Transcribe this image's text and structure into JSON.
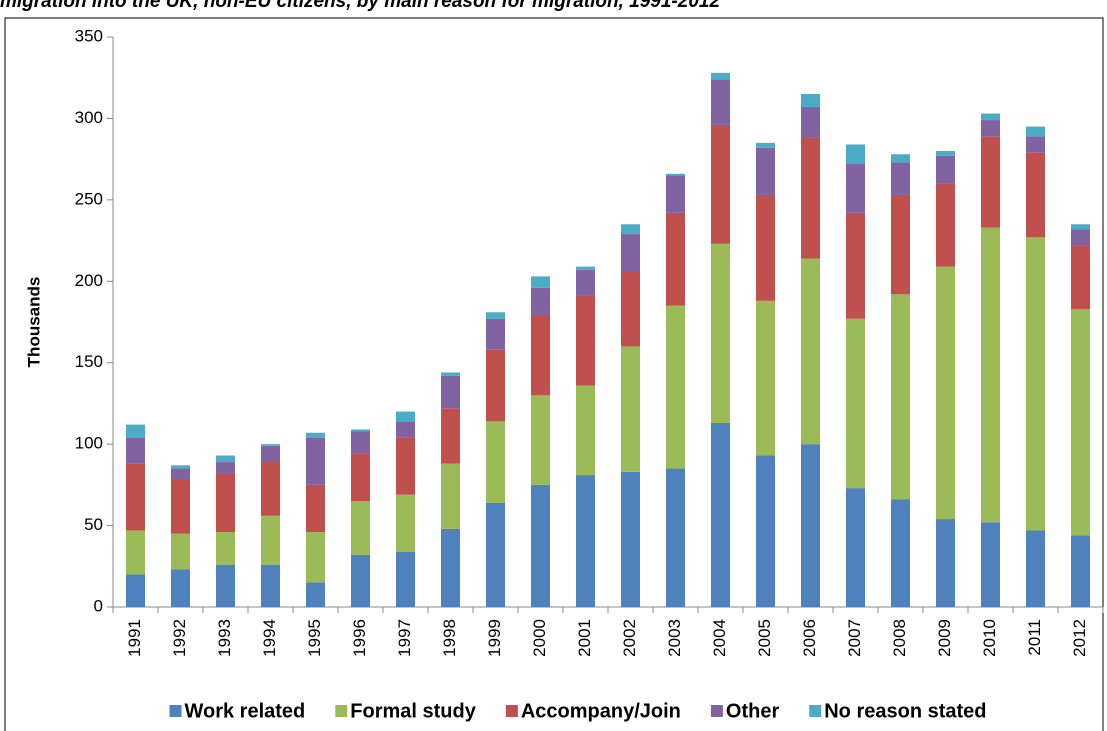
{
  "chart_data": {
    "type": "stacked_bar",
    "title": "migration into the UK, non-EU citizens, by main reason for migration, 1991-2012",
    "y_label": "Thousands",
    "categories": [
      "1991",
      "1992",
      "1993",
      "1994",
      "1995",
      "1996",
      "1997",
      "1998",
      "1999",
      "2000",
      "2001",
      "2002",
      "2003",
      "2004",
      "2005",
      "2006",
      "2007",
      "2008",
      "2009",
      "2010",
      "2011",
      "2012"
    ],
    "series": [
      {
        "name": "Work related",
        "color": "#4f81bd",
        "values": [
          20,
          23,
          26,
          26,
          15,
          32,
          34,
          48,
          64,
          75,
          81,
          83,
          85,
          113,
          93,
          100,
          73,
          66,
          54,
          52,
          47,
          44
        ]
      },
      {
        "name": "Formal study",
        "color": "#9bbb59",
        "values": [
          27,
          22,
          20,
          30,
          31,
          33,
          35,
          40,
          50,
          55,
          55,
          77,
          100,
          110,
          95,
          114,
          104,
          126,
          155,
          181,
          180,
          139
        ]
      },
      {
        "name": "Accompany/Join",
        "color": "#c0504d",
        "values": [
          41,
          33,
          36,
          33,
          29,
          29,
          35,
          34,
          44,
          49,
          55,
          46,
          57,
          73,
          65,
          74,
          65,
          61,
          51,
          56,
          52,
          39
        ]
      },
      {
        "name": "Other",
        "color": "#8064a2",
        "values": [
          16,
          7,
          7,
          10,
          29,
          14,
          10,
          20,
          19,
          17,
          16,
          23,
          23,
          28,
          29,
          19,
          30,
          20,
          17,
          10,
          10,
          10
        ]
      },
      {
        "name": "No reason stated",
        "color": "#4bacc6",
        "values": [
          8,
          2,
          4,
          1,
          3,
          1,
          6,
          2,
          4,
          7,
          2,
          6,
          1,
          4,
          3,
          8,
          12,
          5,
          3,
          4,
          6,
          3
        ]
      }
    ],
    "ylim": [
      0,
      350
    ],
    "yticks": [
      0,
      50,
      100,
      150,
      200,
      250,
      300,
      350
    ],
    "grid": false,
    "legend": "bottom"
  }
}
